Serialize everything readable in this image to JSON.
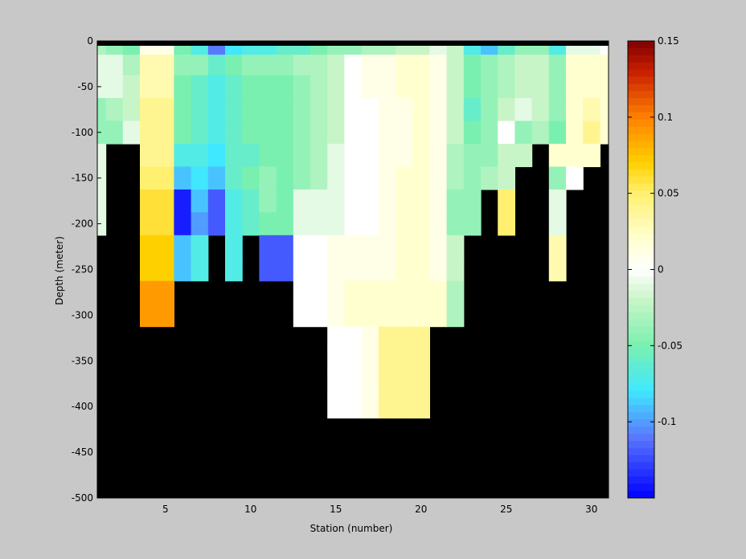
{
  "chart_data": {
    "type": "heatmap",
    "title": "",
    "xlabel": "Station (number)",
    "ylabel": "Depth (meter)",
    "xlim": [
      1,
      31
    ],
    "ylim": [
      -500,
      0
    ],
    "x_ticks": [
      5,
      10,
      15,
      20,
      25,
      30
    ],
    "y_ticks": [
      0,
      -50,
      -100,
      -150,
      -200,
      -250,
      -300,
      -350,
      -400,
      -450,
      -500
    ],
    "stations": [
      1,
      2,
      3,
      4,
      5,
      6,
      7,
      8,
      9,
      10,
      11,
      12,
      13,
      14,
      15,
      16,
      17,
      18,
      19,
      20,
      21,
      22,
      23,
      24,
      25,
      26,
      27,
      28,
      29,
      30,
      31
    ],
    "depth_bins": [
      -5,
      -25,
      -50,
      -75,
      -100,
      -125,
      -150,
      -175,
      -200,
      -225,
      -250,
      -275,
      -300,
      -325,
      -350,
      -375,
      -400
    ],
    "mask_value": "no data (black)",
    "values": [
      [
        -0.03,
        -0.04,
        -0.05,
        0.01,
        0.01,
        -0.05,
        -0.07,
        -0.11,
        -0.08,
        -0.07,
        -0.07,
        -0.06,
        -0.06,
        -0.05,
        -0.04,
        -0.04,
        -0.03,
        -0.03,
        -0.02,
        -0.02,
        -0.01,
        -0.02,
        -0.07,
        -0.09,
        -0.06,
        -0.04,
        -0.04,
        -0.07,
        -0.01,
        -0.01,
        0.0
      ],
      [
        -0.01,
        -0.01,
        -0.03,
        0.03,
        0.03,
        -0.04,
        -0.04,
        -0.06,
        -0.05,
        -0.04,
        -0.04,
        -0.04,
        -0.03,
        -0.03,
        -0.02,
        0.0,
        0.01,
        0.01,
        0.02,
        0.02,
        0.01,
        -0.02,
        -0.05,
        -0.04,
        -0.03,
        -0.02,
        -0.02,
        -0.04,
        0.02,
        0.02,
        0.02
      ],
      [
        -0.01,
        -0.01,
        -0.02,
        0.03,
        0.03,
        -0.05,
        -0.06,
        -0.07,
        -0.06,
        -0.05,
        -0.05,
        -0.05,
        -0.04,
        -0.03,
        -0.02,
        0.0,
        0.01,
        0.01,
        0.02,
        0.02,
        0.01,
        -0.02,
        -0.05,
        -0.04,
        -0.03,
        -0.02,
        -0.02,
        -0.04,
        0.02,
        0.02,
        0.02
      ],
      [
        -0.04,
        -0.03,
        -0.02,
        0.04,
        0.04,
        -0.05,
        -0.06,
        -0.07,
        -0.06,
        -0.05,
        -0.05,
        -0.05,
        -0.04,
        -0.03,
        -0.02,
        0.0,
        0.0,
        0.01,
        0.01,
        0.02,
        0.01,
        -0.02,
        -0.06,
        -0.04,
        -0.02,
        -0.01,
        -0.02,
        -0.04,
        0.02,
        0.03,
        0.02
      ],
      [
        -0.04,
        -0.04,
        -0.01,
        0.04,
        0.04,
        -0.05,
        -0.06,
        -0.07,
        -0.06,
        -0.05,
        -0.05,
        -0.05,
        -0.04,
        -0.03,
        -0.02,
        0.0,
        0.0,
        0.01,
        0.01,
        0.02,
        0.01,
        -0.02,
        -0.05,
        -0.04,
        0.0,
        -0.04,
        -0.03,
        -0.05,
        0.02,
        0.04,
        0.02
      ],
      [
        -0.01,
        null,
        null,
        0.04,
        0.04,
        -0.07,
        -0.07,
        -0.08,
        -0.06,
        -0.06,
        -0.05,
        -0.05,
        -0.04,
        -0.03,
        -0.01,
        0.0,
        0.0,
        0.01,
        0.01,
        0.02,
        0.01,
        -0.03,
        -0.04,
        -0.04,
        -0.02,
        -0.02,
        null,
        0.02,
        0.02,
        0.02,
        null
      ],
      [
        -0.01,
        null,
        null,
        0.05,
        0.05,
        -0.09,
        -0.08,
        -0.09,
        -0.06,
        -0.05,
        -0.04,
        -0.05,
        -0.04,
        -0.03,
        -0.01,
        0.0,
        0.0,
        0.01,
        0.02,
        0.02,
        0.01,
        -0.03,
        -0.04,
        -0.03,
        -0.02,
        null,
        null,
        -0.04,
        0.0,
        null,
        null
      ],
      [
        -0.01,
        null,
        null,
        0.06,
        0.06,
        -0.14,
        -0.09,
        -0.12,
        -0.07,
        -0.06,
        -0.04,
        -0.05,
        -0.01,
        -0.01,
        -0.01,
        0.0,
        0.0,
        0.01,
        0.02,
        0.02,
        0.01,
        -0.04,
        -0.04,
        null,
        0.05,
        null,
        null,
        -0.01,
        null,
        null,
        null
      ],
      [
        -0.01,
        null,
        null,
        0.06,
        0.06,
        -0.14,
        -0.1,
        -0.12,
        -0.07,
        -0.06,
        -0.05,
        -0.05,
        -0.01,
        -0.01,
        -0.01,
        0.0,
        0.0,
        0.01,
        0.02,
        0.02,
        0.01,
        -0.04,
        -0.04,
        null,
        0.05,
        null,
        null,
        -0.01,
        null,
        null,
        null
      ],
      [
        null,
        null,
        null,
        0.07,
        0.07,
        -0.09,
        -0.07,
        null,
        -0.07,
        null,
        -0.12,
        -0.12,
        0.0,
        0.0,
        0.01,
        0.01,
        0.01,
        0.01,
        0.02,
        0.02,
        0.01,
        -0.02,
        null,
        null,
        null,
        null,
        null,
        0.03,
        null,
        null,
        null
      ],
      [
        null,
        null,
        null,
        0.07,
        0.07,
        -0.09,
        -0.07,
        null,
        -0.07,
        null,
        -0.12,
        -0.12,
        0.0,
        0.0,
        0.01,
        0.01,
        0.01,
        0.01,
        0.02,
        0.02,
        0.01,
        -0.02,
        null,
        null,
        null,
        null,
        null,
        0.03,
        null,
        null,
        null
      ],
      [
        null,
        null,
        null,
        0.09,
        0.09,
        null,
        null,
        null,
        null,
        null,
        null,
        null,
        0.0,
        0.0,
        0.01,
        0.02,
        0.02,
        0.02,
        0.02,
        0.02,
        0.02,
        -0.03,
        null,
        null,
        null,
        null,
        null,
        null,
        null,
        null,
        null
      ],
      [
        null,
        null,
        null,
        0.09,
        0.09,
        null,
        null,
        null,
        null,
        null,
        null,
        null,
        0.0,
        0.0,
        0.01,
        0.02,
        0.02,
        0.02,
        0.02,
        0.02,
        0.02,
        -0.03,
        null,
        null,
        null,
        null,
        null,
        null,
        null,
        null,
        null
      ],
      [
        null,
        null,
        null,
        null,
        null,
        null,
        null,
        null,
        null,
        null,
        null,
        null,
        null,
        null,
        0.0,
        0.0,
        0.01,
        0.04,
        0.04,
        0.04,
        null,
        null,
        null,
        null,
        null,
        null,
        null,
        null,
        null,
        null,
        null
      ],
      [
        null,
        null,
        null,
        null,
        null,
        null,
        null,
        null,
        null,
        null,
        null,
        null,
        null,
        null,
        0.0,
        0.0,
        0.01,
        0.04,
        0.04,
        0.04,
        null,
        null,
        null,
        null,
        null,
        null,
        null,
        null,
        null,
        null,
        null
      ],
      [
        null,
        null,
        null,
        null,
        null,
        null,
        null,
        null,
        null,
        null,
        null,
        null,
        null,
        null,
        0.0,
        0.0,
        0.01,
        0.04,
        0.04,
        0.04,
        null,
        null,
        null,
        null,
        null,
        null,
        null,
        null,
        null,
        null,
        null
      ],
      [
        null,
        null,
        null,
        null,
        null,
        null,
        null,
        null,
        null,
        null,
        null,
        null,
        null,
        null,
        0.0,
        0.0,
        0.01,
        0.04,
        0.04,
        0.04,
        null,
        null,
        null,
        null,
        null,
        null,
        null,
        null,
        null,
        null,
        null
      ]
    ],
    "colorbar": {
      "clim": [
        -0.15,
        0.15
      ],
      "ticks": [
        0.15,
        0.1,
        0.05,
        0,
        -0.05,
        -0.1
      ],
      "tick_labels": [
        "0.15",
        "0.1",
        "0.05",
        "0",
        "-0.05",
        "-0.1"
      ]
    },
    "colormap_stops": [
      {
        "v": -0.15,
        "c": "#0000ff"
      },
      {
        "v": -0.11,
        "c": "#5a78ff"
      },
      {
        "v": -0.08,
        "c": "#40e8ff"
      },
      {
        "v": -0.05,
        "c": "#7af0b0"
      },
      {
        "v": -0.02,
        "c": "#c8f5c8"
      },
      {
        "v": 0.0,
        "c": "#ffffff"
      },
      {
        "v": 0.02,
        "c": "#ffffd0"
      },
      {
        "v": 0.05,
        "c": "#fff070"
      },
      {
        "v": 0.07,
        "c": "#ffd000"
      },
      {
        "v": 0.1,
        "c": "#ff8000"
      },
      {
        "v": 0.13,
        "c": "#c81e00"
      },
      {
        "v": 0.15,
        "c": "#800000"
      }
    ],
    "colors": {
      "background": "#c8c8c8",
      "mask": "#000000",
      "axes": "#000000"
    }
  }
}
